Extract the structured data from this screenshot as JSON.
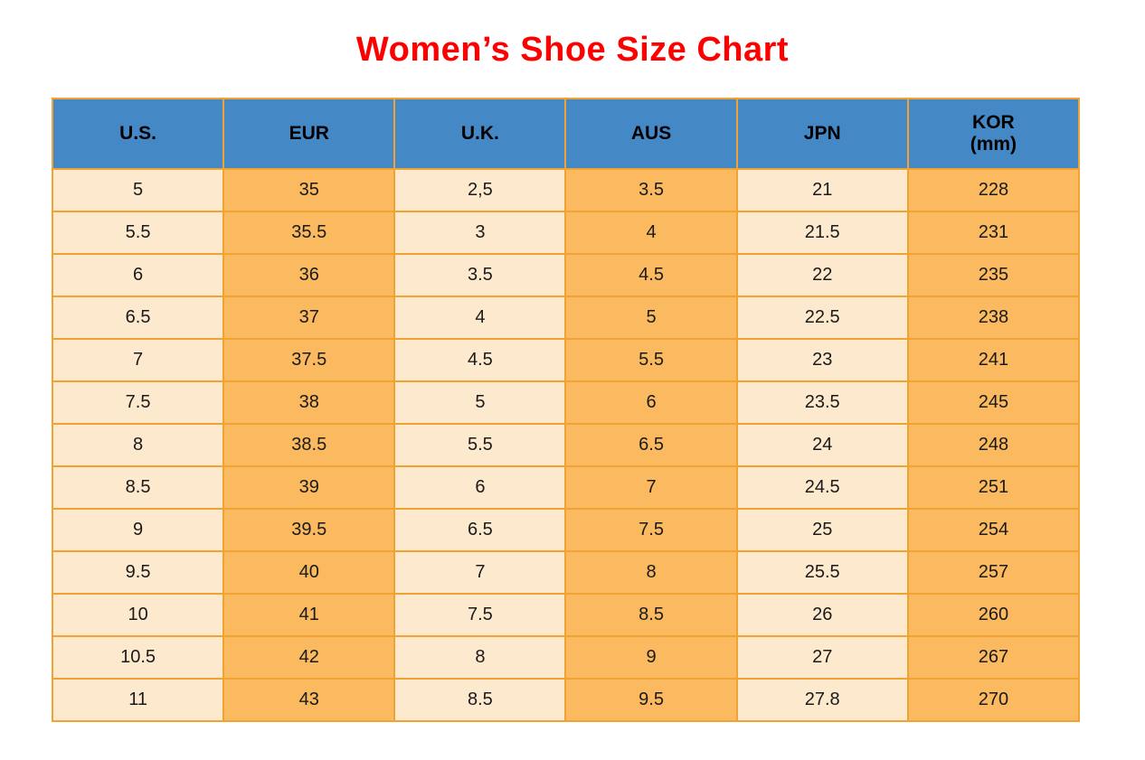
{
  "title": "Women’s Shoe Size Chart",
  "colors": {
    "header_bg": "#4588C6",
    "cream": "#FDE9CE",
    "orange": "#FBBA60",
    "border": "#F0A232",
    "title": "#FF0000",
    "text": "#1A1A1A"
  },
  "table": {
    "columns": [
      {
        "label": "U.S.",
        "sub": ""
      },
      {
        "label": "EUR",
        "sub": ""
      },
      {
        "label": "U.K.",
        "sub": ""
      },
      {
        "label": "AUS",
        "sub": ""
      },
      {
        "label": "JPN",
        "sub": ""
      },
      {
        "label": "KOR",
        "sub": "(mm)"
      }
    ]
  },
  "chart_data": {
    "type": "table",
    "title": "Women’s Shoe Size Chart",
    "columns": [
      "U.S.",
      "EUR",
      "U.K.",
      "AUS",
      "JPN",
      "KOR (mm)"
    ],
    "rows": [
      [
        "5",
        "35",
        "2,5",
        "3.5",
        "21",
        "228"
      ],
      [
        "5.5",
        "35.5",
        "3",
        "4",
        "21.5",
        "231"
      ],
      [
        "6",
        "36",
        "3.5",
        "4.5",
        "22",
        "235"
      ],
      [
        "6.5",
        "37",
        "4",
        "5",
        "22.5",
        "238"
      ],
      [
        "7",
        "37.5",
        "4.5",
        "5.5",
        "23",
        "241"
      ],
      [
        "7.5",
        "38",
        "5",
        "6",
        "23.5",
        "245"
      ],
      [
        "8",
        "38.5",
        "5.5",
        "6.5",
        "24",
        "248"
      ],
      [
        "8.5",
        "39",
        "6",
        "7",
        "24.5",
        "251"
      ],
      [
        "9",
        "39.5",
        "6.5",
        "7.5",
        "25",
        "254"
      ],
      [
        "9.5",
        "40",
        "7",
        "8",
        "25.5",
        "257"
      ],
      [
        "10",
        "41",
        "7.5",
        "8.5",
        "26",
        "260"
      ],
      [
        "10.5",
        "42",
        "8",
        "9",
        "27",
        "267"
      ],
      [
        "11",
        "43",
        "8.5",
        "9.5",
        "27.8",
        "270"
      ]
    ]
  }
}
